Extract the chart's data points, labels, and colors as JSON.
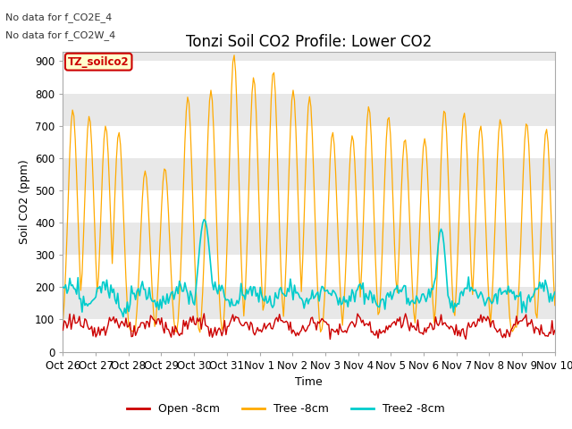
{
  "title": "Tonzi Soil CO2 Profile: Lower CO2",
  "ylabel": "Soil CO2 (ppm)",
  "xlabel": "Time",
  "ylim": [
    0,
    930
  ],
  "yticks": [
    0,
    100,
    200,
    300,
    400,
    500,
    600,
    700,
    800,
    900
  ],
  "xtick_labels": [
    "Oct 26",
    "Oct 27",
    "Oct 28",
    "Oct 29",
    "Oct 30",
    "Oct 31",
    "Nov 1",
    "Nov 2",
    "Nov 3",
    "Nov 4",
    "Nov 5",
    "Nov 6",
    "Nov 7",
    "Nov 8",
    "Nov 9",
    "Nov 10"
  ],
  "annotation1": "No data for f_CO2E_4",
  "annotation2": "No data for f_CO2W_4",
  "legend_box_label": "TZ_soilco2",
  "legend_entries": [
    "Open -8cm",
    "Tree -8cm",
    "Tree2 -8cm"
  ],
  "colors": {
    "open": "#cc0000",
    "tree": "#ffaa00",
    "tree2": "#00cccc",
    "legend_box_border": "#cc0000",
    "legend_box_fill": "#ffffcc",
    "band_light": "#ffffff",
    "band_dark": "#e8e8e8"
  },
  "title_fontsize": 12,
  "label_fontsize": 9,
  "tick_fontsize": 8.5,
  "n_days": 15,
  "n_points": 360
}
